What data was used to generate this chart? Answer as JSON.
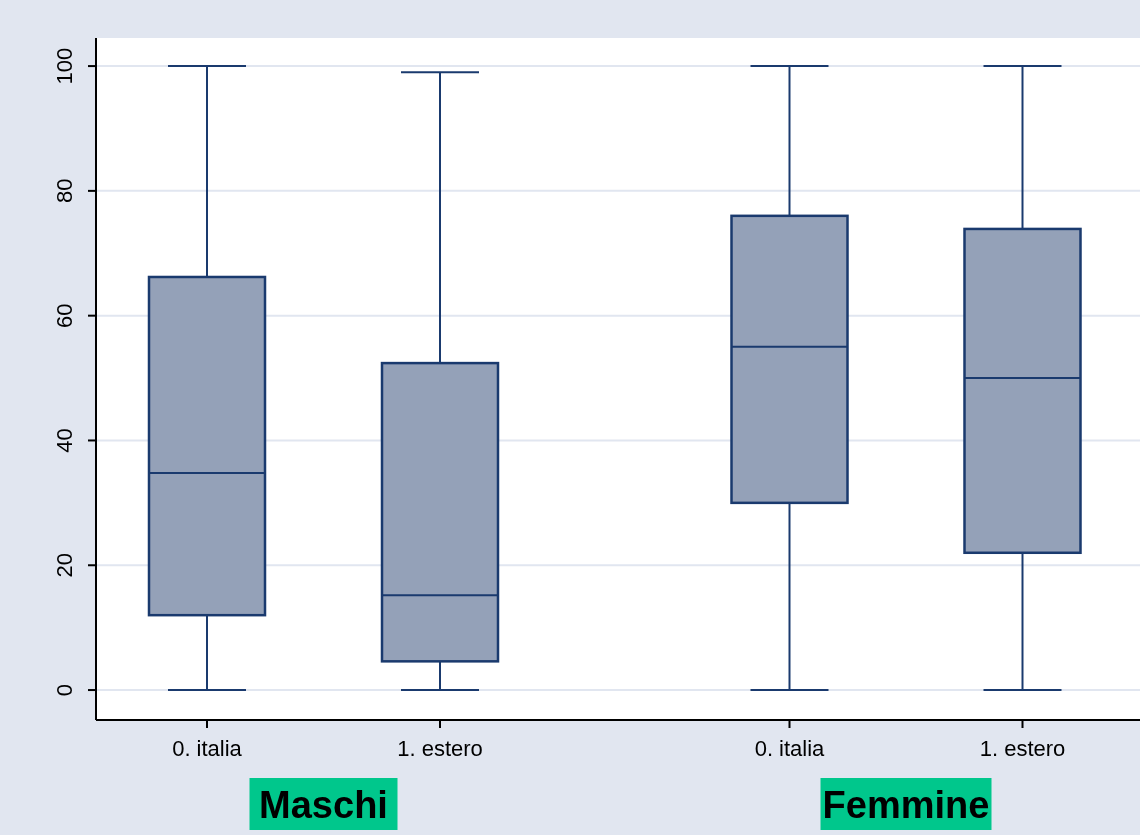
{
  "chart_data": {
    "type": "box",
    "categories": [
      "0. italia",
      "1. estero",
      "0. italia",
      "1. estero"
    ],
    "series": [
      {
        "color": "#94a1b8",
        "boxes": [
          {
            "low": 0,
            "q1": 12,
            "median": 34.8,
            "q3": 66.2,
            "high": 100
          },
          {
            "low": 0,
            "q1": 4.6,
            "median": 15.2,
            "q3": 52.4,
            "high": 99
          },
          {
            "low": 0,
            "q1": 30,
            "median": 55,
            "q3": 76,
            "high": 100
          },
          {
            "low": 0,
            "q1": 22,
            "median": 50,
            "q3": 73.9,
            "high": 100
          }
        ]
      }
    ],
    "ylim": [
      -4.8,
      104.5
    ],
    "yticks": [
      0,
      20,
      40,
      60,
      80,
      100
    ],
    "grid": "y",
    "annotations": [
      "Maschi",
      "Femmine"
    ]
  }
}
